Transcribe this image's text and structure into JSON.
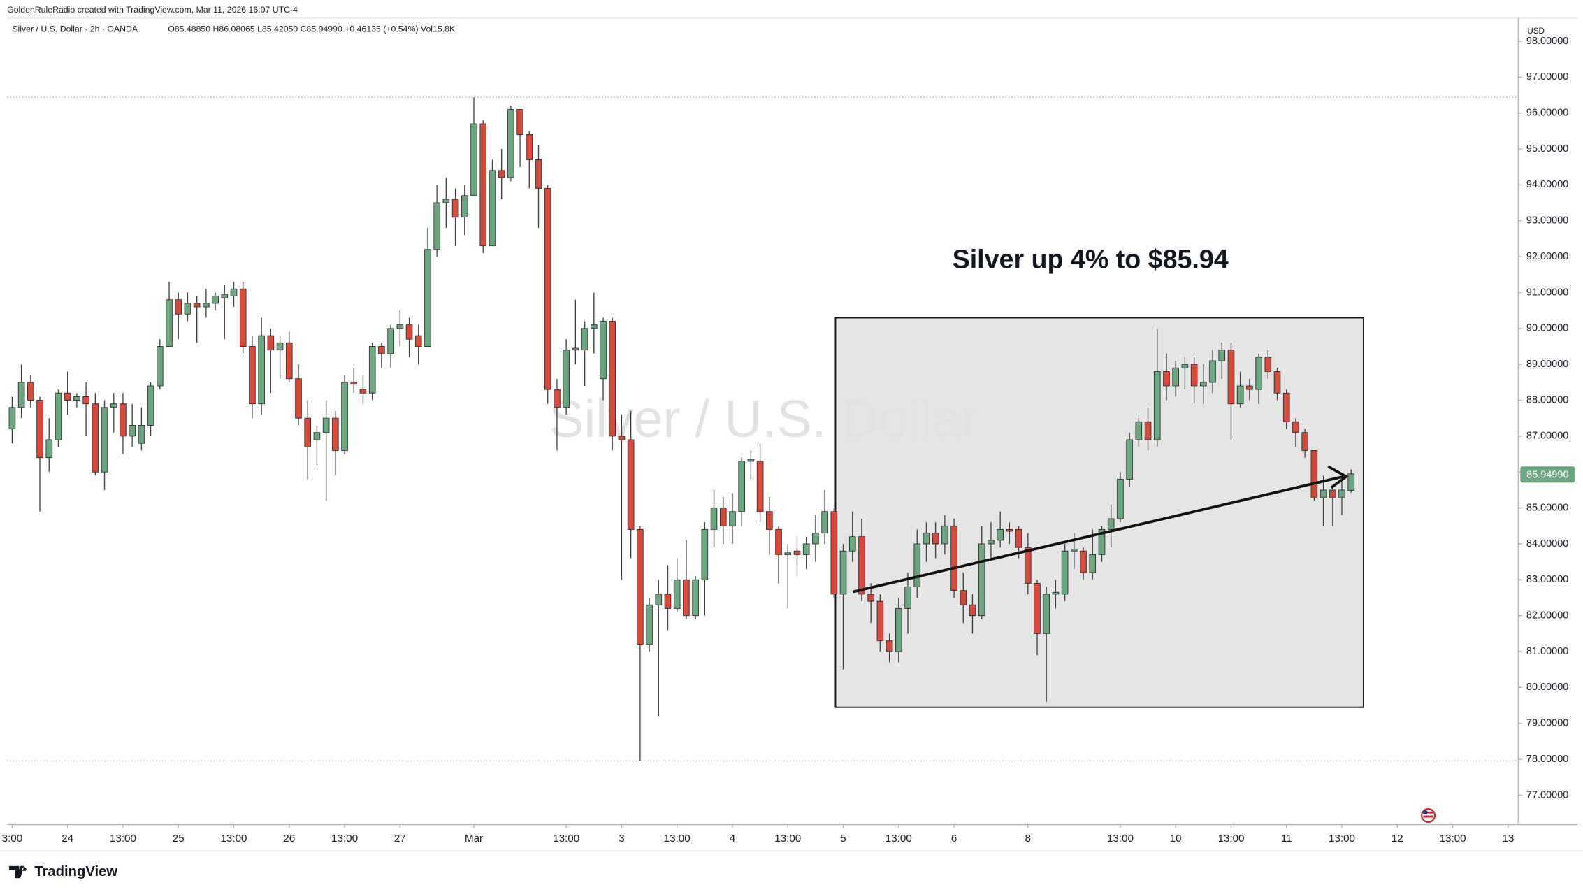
{
  "header": "GoldenRuleRadio created with TradingView.com, Mar 11, 2026 16:07 UTC-4",
  "brand": "TradingView",
  "chart_data": {
    "type": "candlestick",
    "legend": "Silver / U.S. Dollar · 2h · OANDA",
    "ohlc_text": "O85.48850 H86.08065 L85.42050 C85.94990 +0.46135 (+0.54%) Vol15.8K",
    "watermark": "Silver / U.S. Dollar",
    "annotation": "Silver up 4% to $85.94",
    "currency": "USD",
    "last_price_label": "85.94990",
    "up_color": "#6aa77e",
    "down_color": "#d64a3c",
    "reference_lines": [
      96.44,
      77.96
    ],
    "ylim": [
      76.18,
      98.64
    ],
    "xlim": [
      -0.55,
      163.1
    ],
    "yticks": [
      {
        "value": 77,
        "label": "77.00000"
      },
      {
        "value": 78,
        "label": "78.00000"
      },
      {
        "value": 79,
        "label": "79.00000"
      },
      {
        "value": 80,
        "label": "80.00000"
      },
      {
        "value": 81,
        "label": "81.00000"
      },
      {
        "value": 82,
        "label": "82.00000"
      },
      {
        "value": 83,
        "label": "83.00000"
      },
      {
        "value": 84,
        "label": "84.00000"
      },
      {
        "value": 85,
        "label": "85.00000"
      },
      {
        "value": 86,
        "label": "86.00000"
      },
      {
        "value": 87,
        "label": "87.00000"
      },
      {
        "value": 88,
        "label": "88.00000"
      },
      {
        "value": 89,
        "label": "89.00000"
      },
      {
        "value": 90,
        "label": "90.00000"
      },
      {
        "value": 91,
        "label": "91.00000"
      },
      {
        "value": 92,
        "label": "92.00000"
      },
      {
        "value": 93,
        "label": "93.00000"
      },
      {
        "value": 94,
        "label": "94.00000"
      },
      {
        "value": 95,
        "label": "95.00000"
      },
      {
        "value": 96,
        "label": "96.00000"
      },
      {
        "value": 97,
        "label": "97.00000"
      },
      {
        "value": 98,
        "label": "98.00000"
      }
    ],
    "xticks": [
      {
        "value": 0,
        "label": "3:00"
      },
      {
        "value": 6,
        "label": "24"
      },
      {
        "value": 12,
        "label": "13:00"
      },
      {
        "value": 18,
        "label": "25"
      },
      {
        "value": 24,
        "label": "13:00"
      },
      {
        "value": 30,
        "label": "26"
      },
      {
        "value": 36,
        "label": "13:00"
      },
      {
        "value": 42,
        "label": "27"
      },
      {
        "value": 50,
        "label": "Mar"
      },
      {
        "value": 60,
        "label": "13:00"
      },
      {
        "value": 66,
        "label": "3"
      },
      {
        "value": 72,
        "label": "13:00"
      },
      {
        "value": 78,
        "label": "4"
      },
      {
        "value": 84,
        "label": "13:00"
      },
      {
        "value": 90,
        "label": "5"
      },
      {
        "value": 96,
        "label": "13:00"
      },
      {
        "value": 102,
        "label": "6"
      },
      {
        "value": 110,
        "label": "8"
      },
      {
        "value": 120,
        "label": "13:00"
      },
      {
        "value": 126,
        "label": "10"
      },
      {
        "value": 132,
        "label": "13:00"
      },
      {
        "value": 138,
        "label": "11"
      },
      {
        "value": 144,
        "label": "13:00"
      },
      {
        "value": 150,
        "label": "12"
      },
      {
        "value": 156,
        "label": "13:00"
      },
      {
        "value": 162,
        "label": "13"
      }
    ],
    "ohlc": [
      [
        87.2,
        88.1,
        86.8,
        87.8
      ],
      [
        87.8,
        89.0,
        87.5,
        88.5
      ],
      [
        88.5,
        88.7,
        87.8,
        88.0
      ],
      [
        88.0,
        88.1,
        84.9,
        86.4
      ],
      [
        86.4,
        87.5,
        86.0,
        86.9
      ],
      [
        86.9,
        88.3,
        86.7,
        88.2
      ],
      [
        88.2,
        88.8,
        87.6,
        88.0
      ],
      [
        88.0,
        88.2,
        87.8,
        88.1
      ],
      [
        88.1,
        88.5,
        87.0,
        87.9
      ],
      [
        87.9,
        88.2,
        85.9,
        86.0
      ],
      [
        86.0,
        88.0,
        85.5,
        87.8
      ],
      [
        87.8,
        88.2,
        87.1,
        87.9
      ],
      [
        87.9,
        88.2,
        86.5,
        87.0
      ],
      [
        87.0,
        87.9,
        86.7,
        87.3
      ],
      [
        86.8,
        87.8,
        86.6,
        87.3
      ],
      [
        87.3,
        88.5,
        87.0,
        88.4
      ],
      [
        88.4,
        89.7,
        88.3,
        89.5
      ],
      [
        89.5,
        91.3,
        89.5,
        90.8
      ],
      [
        90.8,
        91.0,
        89.7,
        90.4
      ],
      [
        90.4,
        91.0,
        90.2,
        90.7
      ],
      [
        90.7,
        90.9,
        89.6,
        90.6
      ],
      [
        90.6,
        91.1,
        90.3,
        90.7
      ],
      [
        90.7,
        91.0,
        90.5,
        90.9
      ],
      [
        90.85,
        91.2,
        89.7,
        90.95
      ],
      [
        90.9,
        91.3,
        90.6,
        91.1
      ],
      [
        91.1,
        91.3,
        89.3,
        89.5
      ],
      [
        89.5,
        89.8,
        87.5,
        87.9
      ],
      [
        87.9,
        90.3,
        87.6,
        89.8
      ],
      [
        89.8,
        90.0,
        88.2,
        89.4
      ],
      [
        89.4,
        89.8,
        88.6,
        89.6
      ],
      [
        89.6,
        89.9,
        88.5,
        88.6
      ],
      [
        88.6,
        89.0,
        87.3,
        87.5
      ],
      [
        87.5,
        88.0,
        85.8,
        86.7
      ],
      [
        86.9,
        87.3,
        86.2,
        87.1
      ],
      [
        87.1,
        88.0,
        85.2,
        87.5
      ],
      [
        87.5,
        87.7,
        85.9,
        86.6
      ],
      [
        86.6,
        88.7,
        86.5,
        88.5
      ],
      [
        88.5,
        88.9,
        88.2,
        88.45
      ],
      [
        88.3,
        88.7,
        87.9,
        88.2
      ],
      [
        88.2,
        89.6,
        88.0,
        89.5
      ],
      [
        89.5,
        89.6,
        88.9,
        89.3
      ],
      [
        89.3,
        90.1,
        88.9,
        90.0
      ],
      [
        90.0,
        90.5,
        89.5,
        90.1
      ],
      [
        90.1,
        90.3,
        89.2,
        89.7
      ],
      [
        89.8,
        90.1,
        89.0,
        89.5
      ],
      [
        89.5,
        92.8,
        89.5,
        92.2
      ],
      [
        92.2,
        94.0,
        92.0,
        93.5
      ],
      [
        93.5,
        94.2,
        92.8,
        93.6
      ],
      [
        93.6,
        93.9,
        92.3,
        93.1
      ],
      [
        93.1,
        94.0,
        92.6,
        93.7
      ],
      [
        93.7,
        96.44,
        93.7,
        95.7
      ],
      [
        95.7,
        95.8,
        92.1,
        92.3
      ],
      [
        92.3,
        94.7,
        92.3,
        94.4
      ],
      [
        94.4,
        95.0,
        93.6,
        94.2
      ],
      [
        94.2,
        96.2,
        94.1,
        96.1
      ],
      [
        96.1,
        96.1,
        94.5,
        95.4
      ],
      [
        95.4,
        95.5,
        93.9,
        94.7
      ],
      [
        94.7,
        95.1,
        92.8,
        93.9
      ],
      [
        93.9,
        94.0,
        87.9,
        88.3
      ],
      [
        88.3,
        88.6,
        86.6,
        87.8
      ],
      [
        87.8,
        89.7,
        87.6,
        89.4
      ],
      [
        89.4,
        90.8,
        89.0,
        89.45
      ],
      [
        89.4,
        90.2,
        88.4,
        90.0
      ],
      [
        90.0,
        91.0,
        89.3,
        90.1
      ],
      [
        88.6,
        90.3,
        88.0,
        90.2
      ],
      [
        90.2,
        90.3,
        86.6,
        87.0
      ],
      [
        87.0,
        87.6,
        83.0,
        86.9
      ],
      [
        86.9,
        87.7,
        83.6,
        84.4
      ],
      [
        84.4,
        84.5,
        77.96,
        81.2
      ],
      [
        81.2,
        82.5,
        81.0,
        82.3
      ],
      [
        82.3,
        83.0,
        79.2,
        82.6
      ],
      [
        82.6,
        83.4,
        81.6,
        82.2
      ],
      [
        82.2,
        83.6,
        82.1,
        83.0
      ],
      [
        83.0,
        84.1,
        81.9,
        82.0
      ],
      [
        82.0,
        83.1,
        81.9,
        83.0
      ],
      [
        83.0,
        84.6,
        82.0,
        84.4
      ],
      [
        84.4,
        85.5,
        83.9,
        85.0
      ],
      [
        85.0,
        85.3,
        84.0,
        84.5
      ],
      [
        84.5,
        85.4,
        84.0,
        84.9
      ],
      [
        84.9,
        86.4,
        84.5,
        86.3
      ],
      [
        86.3,
        86.6,
        85.8,
        86.35
      ],
      [
        86.3,
        86.8,
        84.6,
        84.9
      ],
      [
        84.9,
        85.3,
        83.7,
        84.4
      ],
      [
        84.4,
        84.5,
        82.9,
        83.7
      ],
      [
        83.7,
        84.0,
        82.2,
        83.75
      ],
      [
        83.8,
        84.2,
        83.1,
        83.7
      ],
      [
        83.7,
        84.2,
        83.3,
        84.0
      ],
      [
        84.0,
        84.8,
        83.5,
        84.3
      ],
      [
        84.3,
        85.5,
        84.0,
        84.9
      ],
      [
        84.9,
        85.0,
        82.5,
        82.6
      ],
      [
        82.6,
        84.0,
        80.5,
        83.8
      ],
      [
        83.8,
        84.9,
        83.5,
        84.2
      ],
      [
        84.2,
        84.7,
        82.4,
        82.6
      ],
      [
        82.6,
        82.9,
        81.8,
        82.4
      ],
      [
        82.4,
        82.6,
        81.0,
        81.3
      ],
      [
        81.3,
        81.5,
        80.7,
        81.0
      ],
      [
        81.0,
        82.5,
        80.7,
        82.2
      ],
      [
        82.2,
        83.2,
        81.5,
        82.8
      ],
      [
        82.8,
        84.4,
        82.5,
        84.0
      ],
      [
        84.0,
        84.6,
        83.5,
        84.3
      ],
      [
        84.3,
        84.6,
        83.6,
        84.0
      ],
      [
        84.0,
        84.8,
        83.7,
        84.5
      ],
      [
        84.5,
        84.7,
        82.5,
        82.7
      ],
      [
        82.7,
        83.2,
        81.8,
        82.3
      ],
      [
        82.3,
        82.6,
        81.5,
        82.0
      ],
      [
        82.0,
        84.5,
        81.9,
        84.0
      ],
      [
        84.0,
        84.6,
        83.6,
        84.1
      ],
      [
        84.1,
        84.9,
        83.9,
        84.4
      ],
      [
        84.4,
        84.6,
        84.0,
        84.35
      ],
      [
        84.4,
        84.5,
        83.6,
        83.9
      ],
      [
        83.9,
        84.3,
        82.6,
        82.9
      ],
      [
        82.9,
        83.0,
        80.9,
        81.5
      ],
      [
        81.5,
        82.8,
        79.6,
        82.6
      ],
      [
        82.6,
        83.0,
        82.2,
        82.65
      ],
      [
        82.6,
        84.0,
        82.4,
        83.8
      ],
      [
        83.8,
        84.3,
        83.3,
        83.85
      ],
      [
        83.8,
        83.9,
        83.0,
        83.2
      ],
      [
        83.2,
        84.4,
        83.0,
        83.7
      ],
      [
        83.7,
        84.5,
        83.5,
        84.4
      ],
      [
        84.4,
        85.1,
        83.9,
        84.7
      ],
      [
        84.7,
        86.0,
        84.6,
        85.8
      ],
      [
        85.8,
        87.1,
        85.6,
        86.9
      ],
      [
        86.9,
        87.5,
        86.7,
        87.4
      ],
      [
        87.4,
        87.8,
        86.6,
        86.9
      ],
      [
        86.9,
        90.0,
        86.7,
        88.8
      ],
      [
        88.8,
        89.3,
        88.0,
        88.4
      ],
      [
        88.4,
        89.1,
        88.1,
        88.9
      ],
      [
        88.9,
        89.2,
        88.3,
        89.0
      ],
      [
        89.0,
        89.2,
        87.9,
        88.4
      ],
      [
        88.4,
        89.0,
        87.9,
        88.5
      ],
      [
        88.5,
        89.4,
        88.2,
        89.1
      ],
      [
        89.1,
        89.6,
        88.6,
        89.4
      ],
      [
        89.4,
        89.6,
        86.9,
        87.9
      ],
      [
        87.9,
        88.8,
        87.8,
        88.4
      ],
      [
        88.4,
        88.6,
        88.0,
        88.3
      ],
      [
        88.3,
        89.3,
        87.9,
        89.2
      ],
      [
        89.2,
        89.4,
        88.6,
        88.8
      ],
      [
        88.8,
        88.9,
        88.0,
        88.2
      ],
      [
        88.2,
        88.3,
        87.2,
        87.4
      ],
      [
        87.4,
        87.5,
        86.7,
        87.1
      ],
      [
        87.1,
        87.2,
        86.4,
        86.6
      ],
      [
        86.6,
        86.6,
        85.2,
        85.3
      ],
      [
        85.3,
        85.9,
        84.5,
        85.5
      ],
      [
        85.5,
        85.6,
        84.5,
        85.3
      ],
      [
        85.3,
        85.8,
        84.8,
        85.5
      ],
      [
        85.4885,
        86.08065,
        85.4205,
        85.9499
      ]
    ]
  }
}
